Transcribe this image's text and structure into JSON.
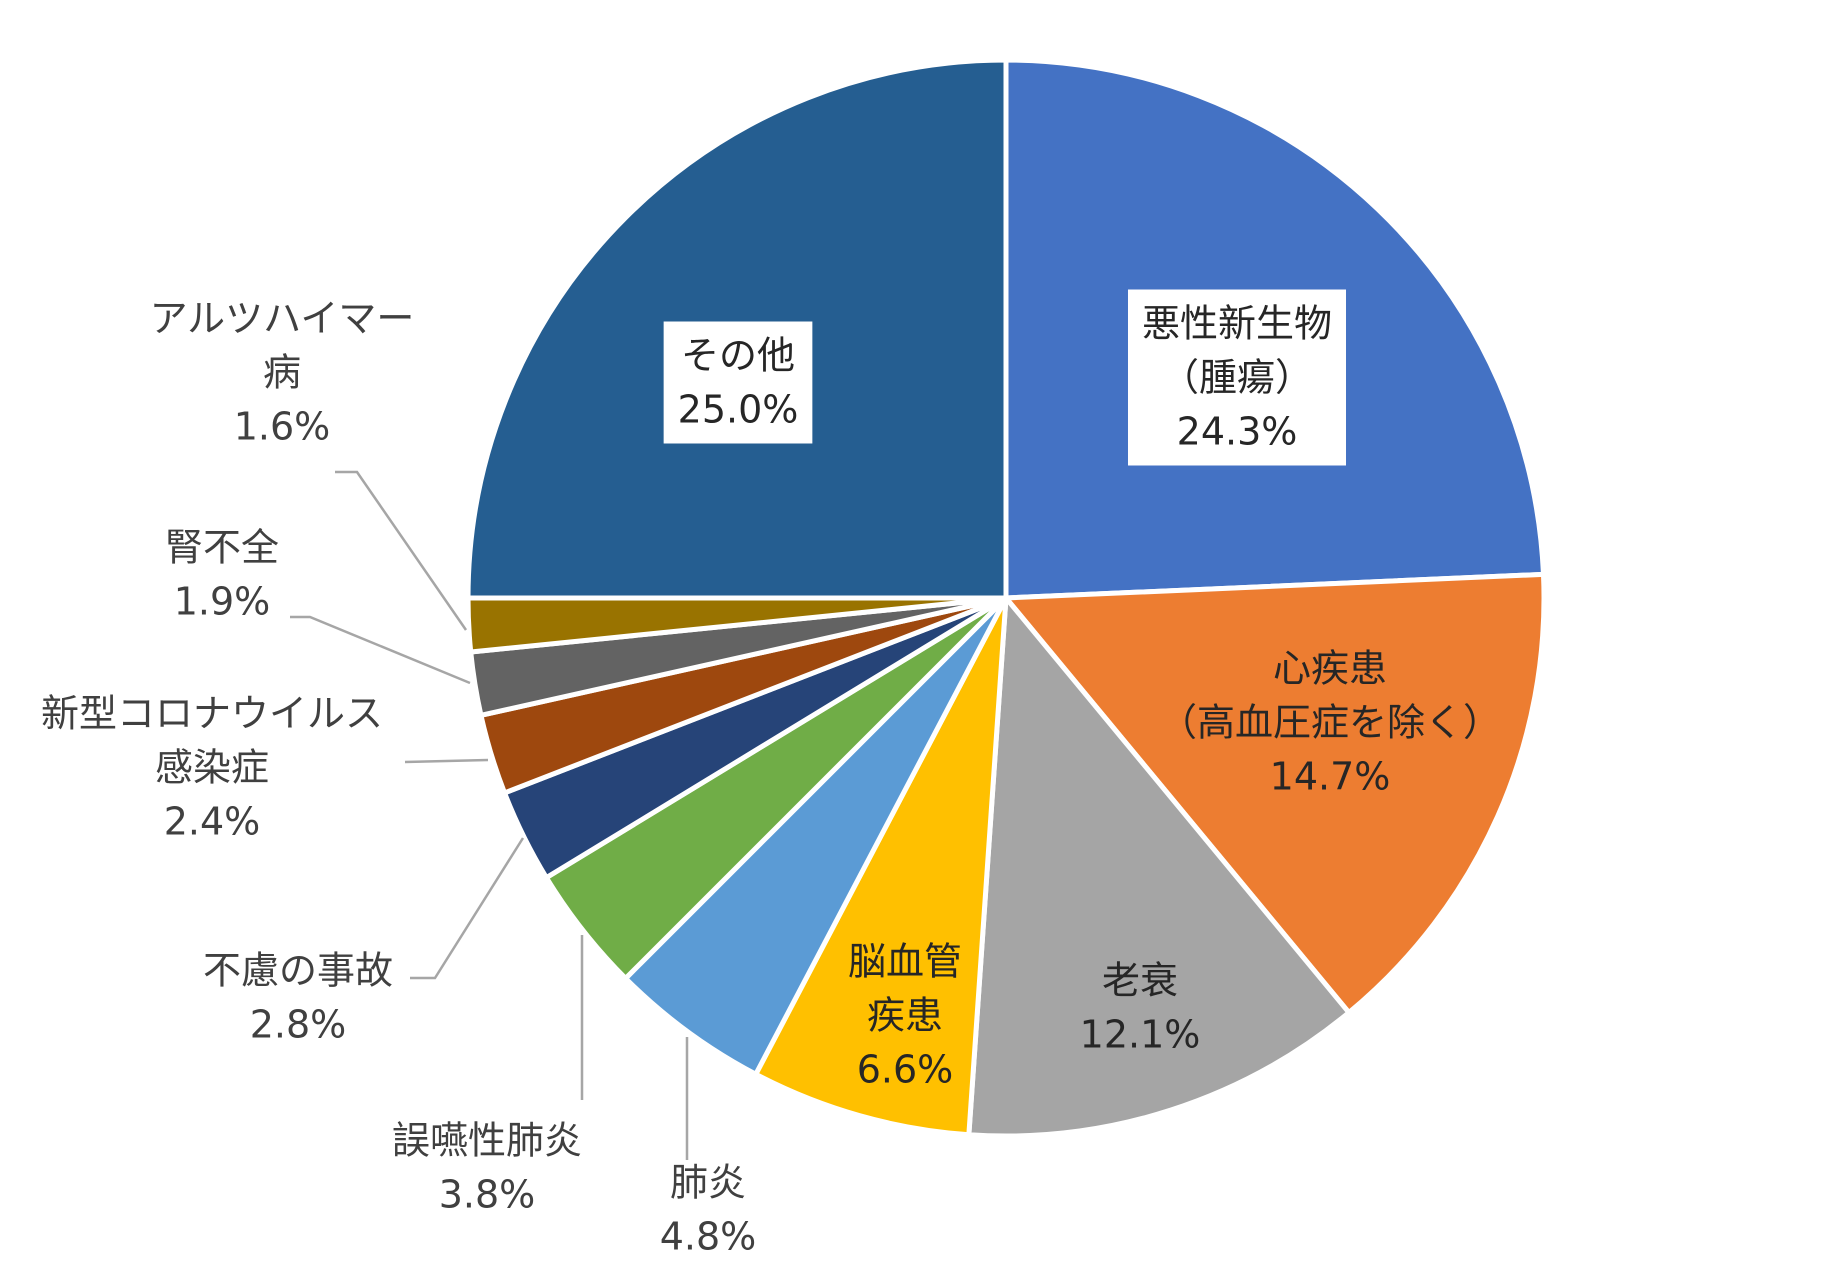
{
  "chart_data": {
    "type": "pie",
    "start_angle_deg": 0,
    "direction": "clockwise",
    "slices": [
      {
        "name": "悪性新生物（腫瘍）",
        "label_lines": [
          "悪性新生物",
          "（腫瘍）"
        ],
        "value": 24.3,
        "value_label": "24.3%",
        "color": "#4472C4"
      },
      {
        "name": "心疾患（高血圧症を除く）",
        "label_lines": [
          "心疾患",
          "（高血圧症を除く）"
        ],
        "value": 14.7,
        "value_label": "14.7%",
        "color": "#ED7D31"
      },
      {
        "name": "老衰",
        "label_lines": [
          "老衰"
        ],
        "value": 12.1,
        "value_label": "12.1%",
        "color": "#A5A5A5"
      },
      {
        "name": "脳血管疾患",
        "label_lines": [
          "脳血管",
          "疾患"
        ],
        "value": 6.6,
        "value_label": "6.6%",
        "color": "#FFC000"
      },
      {
        "name": "肺炎",
        "label_lines": [
          "肺炎"
        ],
        "value": 4.8,
        "value_label": "4.8%",
        "color": "#5B9BD5"
      },
      {
        "name": "誤嚥性肺炎",
        "label_lines": [
          "誤嚥性肺炎"
        ],
        "value": 3.8,
        "value_label": "3.8%",
        "color": "#70AD47"
      },
      {
        "name": "不慮の事故",
        "label_lines": [
          "不慮の事故"
        ],
        "value": 2.8,
        "value_label": "2.8%",
        "color": "#264478"
      },
      {
        "name": "新型コロナウイルス感染症",
        "label_lines": [
          "新型コロナウイルス",
          "感染症"
        ],
        "value": 2.4,
        "value_label": "2.4%",
        "color": "#9E480E"
      },
      {
        "name": "腎不全",
        "label_lines": [
          "腎不全"
        ],
        "value": 1.9,
        "value_label": "1.9%",
        "color": "#636363"
      },
      {
        "name": "アルツハイマー病",
        "label_lines": [
          "アルツハイマー",
          "病"
        ],
        "value": 1.6,
        "value_label": "1.6%",
        "color": "#997300"
      },
      {
        "name": "その他",
        "label_lines": [
          "その他"
        ],
        "value": 25.0,
        "value_label": "25.0%",
        "color": "#255E91"
      }
    ]
  }
}
